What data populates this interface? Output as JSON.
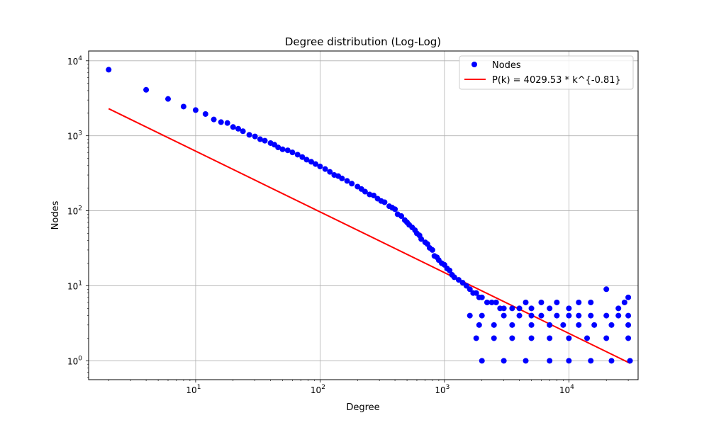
{
  "chart_data": {
    "type": "scatter",
    "title": "Degree distribution (Log-Log)",
    "xlabel": "Degree",
    "ylabel": "Nodes",
    "xscale": "log",
    "yscale": "log",
    "xlim": [
      1.38,
      36000
    ],
    "ylim": [
      0.56,
      13500
    ],
    "xticks": [
      {
        "value": 10,
        "base": "10",
        "exp": "1"
      },
      {
        "value": 100,
        "base": "10",
        "exp": "2"
      },
      {
        "value": 1000,
        "base": "10",
        "exp": "3"
      },
      {
        "value": 10000,
        "base": "10",
        "exp": "4"
      }
    ],
    "yticks": [
      {
        "value": 1,
        "base": "10",
        "exp": "0"
      },
      {
        "value": 10,
        "base": "10",
        "exp": "1"
      },
      {
        "value": 100,
        "base": "10",
        "exp": "2"
      },
      {
        "value": 1000,
        "base": "10",
        "exp": "3"
      },
      {
        "value": 10000,
        "base": "10",
        "exp": "4"
      }
    ],
    "grid": true,
    "legend_position": "top-right",
    "colors": {
      "nodes": "#0000ff",
      "fit": "#ff0000"
    },
    "series": [
      {
        "name": "Nodes",
        "kind": "scatter",
        "points": [
          [
            2,
            7600
          ],
          [
            4,
            4100
          ],
          [
            6,
            3100
          ],
          [
            8,
            2450
          ],
          [
            10,
            2200
          ],
          [
            12,
            1950
          ],
          [
            14,
            1650
          ],
          [
            16,
            1520
          ],
          [
            18,
            1480
          ],
          [
            20,
            1310
          ],
          [
            22,
            1240
          ],
          [
            24,
            1150
          ],
          [
            27,
            1030
          ],
          [
            30,
            980
          ],
          [
            33,
            900
          ],
          [
            36,
            860
          ],
          [
            40,
            800
          ],
          [
            43,
            760
          ],
          [
            46,
            700
          ],
          [
            50,
            660
          ],
          [
            55,
            640
          ],
          [
            60,
            600
          ],
          [
            66,
            560
          ],
          [
            72,
            520
          ],
          [
            78,
            480
          ],
          [
            85,
            450
          ],
          [
            92,
            420
          ],
          [
            100,
            390
          ],
          [
            110,
            360
          ],
          [
            120,
            330
          ],
          [
            130,
            300
          ],
          [
            140,
            290
          ],
          [
            150,
            270
          ],
          [
            165,
            250
          ],
          [
            180,
            230
          ],
          [
            200,
            210
          ],
          [
            215,
            195
          ],
          [
            230,
            180
          ],
          [
            250,
            165
          ],
          [
            270,
            160
          ],
          [
            290,
            145
          ],
          [
            310,
            135
          ],
          [
            330,
            130
          ],
          [
            360,
            115
          ],
          [
            380,
            110
          ],
          [
            400,
            105
          ],
          [
            420,
            90
          ],
          [
            450,
            85
          ],
          [
            480,
            75
          ],
          [
            500,
            70
          ],
          [
            520,
            65
          ],
          [
            550,
            60
          ],
          [
            580,
            55
          ],
          [
            600,
            50
          ],
          [
            630,
            47
          ],
          [
            650,
            42
          ],
          [
            700,
            38
          ],
          [
            730,
            36
          ],
          [
            760,
            32
          ],
          [
            800,
            30
          ],
          [
            830,
            25
          ],
          [
            870,
            24
          ],
          [
            900,
            22
          ],
          [
            950,
            20
          ],
          [
            1000,
            19
          ],
          [
            1050,
            17
          ],
          [
            1100,
            16
          ],
          [
            1150,
            14
          ],
          [
            1200,
            13
          ],
          [
            1300,
            12
          ],
          [
            1400,
            11
          ],
          [
            1500,
            10
          ],
          [
            1600,
            9
          ],
          [
            1700,
            8
          ],
          [
            1800,
            8
          ],
          [
            1900,
            7
          ],
          [
            2000,
            7
          ],
          [
            2200,
            6
          ],
          [
            2400,
            6
          ],
          [
            2600,
            6
          ],
          [
            2800,
            5
          ],
          [
            3000,
            5
          ],
          [
            3500,
            5
          ],
          [
            4000,
            5
          ],
          [
            4500,
            6
          ],
          [
            5000,
            5
          ],
          [
            6000,
            6
          ],
          [
            7000,
            5
          ],
          [
            8000,
            6
          ],
          [
            10000,
            5
          ],
          [
            12000,
            6
          ],
          [
            15000,
            6
          ],
          [
            20000,
            9
          ],
          [
            25000,
            5
          ],
          [
            28000,
            6
          ],
          [
            30000,
            7
          ],
          [
            2000,
            4
          ],
          [
            3000,
            4
          ],
          [
            4000,
            4
          ],
          [
            5000,
            4
          ],
          [
            6000,
            4
          ],
          [
            8000,
            4
          ],
          [
            10000,
            4
          ],
          [
            12000,
            4
          ],
          [
            15000,
            4
          ],
          [
            20000,
            4
          ],
          [
            25000,
            4
          ],
          [
            30000,
            4
          ],
          [
            1600,
            4
          ],
          [
            1900,
            3
          ],
          [
            2500,
            3
          ],
          [
            3500,
            3
          ],
          [
            5000,
            3
          ],
          [
            7000,
            3
          ],
          [
            9000,
            3
          ],
          [
            12000,
            3
          ],
          [
            16000,
            3
          ],
          [
            22000,
            3
          ],
          [
            30000,
            3
          ],
          [
            1800,
            2
          ],
          [
            2500,
            2
          ],
          [
            3500,
            2
          ],
          [
            5000,
            2
          ],
          [
            7000,
            2
          ],
          [
            10000,
            2
          ],
          [
            14000,
            2
          ],
          [
            20000,
            2
          ],
          [
            30000,
            2
          ],
          [
            2000,
            1
          ],
          [
            3000,
            1
          ],
          [
            4500,
            1
          ],
          [
            7000,
            1
          ],
          [
            10000,
            1
          ],
          [
            15000,
            1
          ],
          [
            22000,
            1
          ],
          [
            31000,
            1
          ]
        ]
      },
      {
        "name": "P(k) = 4029.53 * k^{-0.81}",
        "kind": "line",
        "coef": 4029.53,
        "exponent": -0.81,
        "x_range": [
          2,
          31000
        ]
      }
    ]
  }
}
